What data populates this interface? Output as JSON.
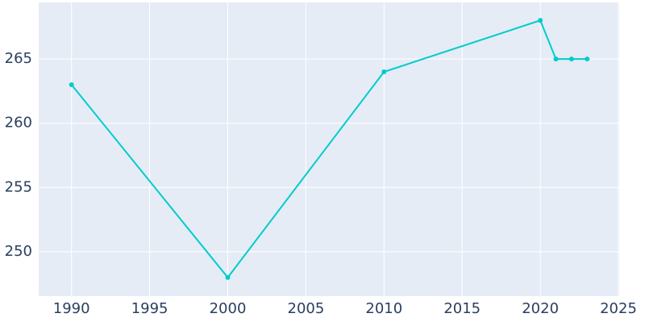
{
  "chart_data": {
    "type": "line",
    "x": [
      1990,
      2000,
      2010,
      2020,
      2021,
      2022,
      2023
    ],
    "series": [
      {
        "color": "#00cccc",
        "values": [
          263,
          248,
          264,
          268,
          265,
          265,
          265
        ]
      }
    ],
    "xlim": [
      1987.9,
      2025.05
    ],
    "xticks": [
      1990,
      1995,
      2000,
      2005,
      2010,
      2015,
      2020,
      2025
    ],
    "ylim": [
      246.55,
      269.4
    ],
    "yticks": [
      250,
      255,
      260,
      265
    ],
    "grid": true,
    "plot_background": "#e5ecf6"
  }
}
